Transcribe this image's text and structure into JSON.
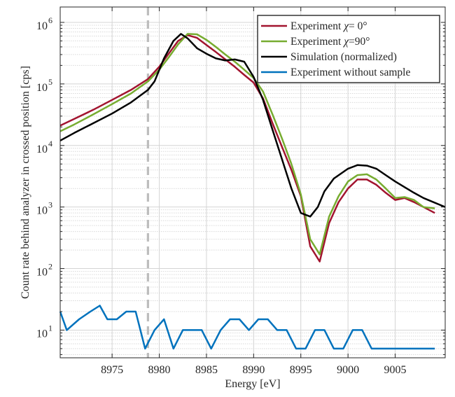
{
  "chart_data": {
    "type": "line",
    "title": "",
    "xlabel": "Energy [eV]",
    "ylabel": "Count rate behind analyzer in crossed position [cps]",
    "xlim": [
      8969.5,
      9010.3
    ],
    "ylim_log10": [
      0.55,
      6.25
    ],
    "yscale": "log",
    "grid": true,
    "x_ticks": [
      8975,
      8980,
      8985,
      8990,
      8995,
      9000,
      9005
    ],
    "x_tick_labels": [
      "8975",
      "8980",
      "8985",
      "8990",
      "8995",
      "9000",
      "9005"
    ],
    "y_tick_exponents": [
      1,
      2,
      3,
      4,
      5,
      6
    ],
    "y_tick_base": "10",
    "legend_position": "top-right",
    "vline": {
      "x": 8978.8,
      "style": "dashed",
      "color": "#bdbdbd"
    },
    "series": [
      {
        "name": "Experiment χ=  0°",
        "legend_prefix": "Experiment ",
        "legend_symbol": "χ",
        "legend_suffix": "=  0°",
        "color": "#a2142f",
        "x": [
          8969.5,
          8971,
          8973,
          8975,
          8977,
          8978.8,
          8980,
          8981,
          8982,
          8983,
          8984,
          8985,
          8986,
          8987,
          8988,
          8989,
          8990,
          8991,
          8992,
          8993,
          8994,
          8995,
          8996,
          8997,
          8998,
          8999,
          9000,
          9001,
          9002,
          9003,
          9004,
          9005,
          9006,
          9007,
          9008,
          9009.2
        ],
        "y": [
          21000,
          27000,
          38000,
          55000,
          80000,
          120000,
          190000,
          310000,
          500000,
          620000,
          560000,
          430000,
          330000,
          250000,
          190000,
          140000,
          105000,
          58000,
          23000,
          9500,
          4000,
          1500,
          230,
          130,
          550,
          1200,
          2000,
          2800,
          2800,
          2300,
          1700,
          1300,
          1400,
          1200,
          1000,
          800
        ]
      },
      {
        "name": "Experiment χ=90°",
        "legend_prefix": "Experiment ",
        "legend_symbol": "χ",
        "legend_suffix": "=90°",
        "color": "#77ac30",
        "x": [
          8969.5,
          8971,
          8973,
          8975,
          8977,
          8978.8,
          8980,
          8981,
          8982,
          8983,
          8984,
          8985,
          8986,
          8987,
          8988,
          8989,
          8990,
          8991,
          8992,
          8993,
          8994,
          8995,
          8996,
          8997,
          8998,
          8999,
          9000,
          9001,
          9002,
          9003,
          9004,
          9005,
          9006,
          9007,
          9008,
          9009.2
        ],
        "y": [
          17000,
          22000,
          32000,
          47000,
          70000,
          110000,
          170000,
          270000,
          440000,
          650000,
          640000,
          520000,
          400000,
          300000,
          230000,
          170000,
          125000,
          75000,
          32000,
          13000,
          5000,
          1600,
          300,
          170,
          700,
          1500,
          2600,
          3300,
          3400,
          2800,
          2000,
          1400,
          1450,
          1300,
          1000,
          950
        ]
      },
      {
        "name": "Simulation (normalized)",
        "color": "#000000",
        "x": [
          8969.5,
          8971,
          8973,
          8975,
          8977,
          8978.8,
          8979.5,
          8980.5,
          8981.5,
          8982.3,
          8983,
          8984,
          8985,
          8986,
          8987,
          8988,
          8989,
          8990,
          8991,
          8992,
          8993,
          8994,
          8995,
          8996,
          8996.8,
          8997.5,
          8998.5,
          9000,
          9001,
          9002,
          9003,
          9004,
          9005,
          9006,
          9007,
          9008,
          9010.3
        ],
        "y": [
          12000,
          16000,
          23000,
          33000,
          50000,
          80000,
          110000,
          260000,
          500000,
          650000,
          550000,
          380000,
          310000,
          260000,
          240000,
          250000,
          230000,
          130000,
          55000,
          18000,
          6000,
          2000,
          800,
          700,
          1000,
          1800,
          2900,
          4200,
          4800,
          4700,
          4200,
          3300,
          2600,
          2100,
          1700,
          1400,
          1000
        ]
      },
      {
        "name": "Experiment without sample",
        "color": "#0072bd",
        "x": [
          8969.5,
          8970.2,
          8971.5,
          8972.7,
          8973.7,
          8974.5,
          8975.5,
          8976.5,
          8977.5,
          8978.5,
          8979.5,
          8980.5,
          8981.5,
          8982.5,
          8983.5,
          8984.5,
          8985.5,
          8986.5,
          8987.5,
          8988.5,
          8989.5,
          8990.5,
          8991.5,
          8992.5,
          8993.5,
          8994.5,
          8995.5,
          8996.5,
          8997.5,
          8998.5,
          8999.5,
          9000.5,
          9001.5,
          9002.5,
          9003.5,
          9004.5,
          9005.5,
          9006.5,
          9007.5,
          9009.2
        ],
        "y": [
          20,
          10,
          15,
          20,
          25,
          15,
          15,
          20,
          20,
          5,
          10,
          15,
          5,
          10,
          10,
          10,
          5,
          10,
          15,
          15,
          10,
          15,
          15,
          10,
          10,
          5,
          5,
          10,
          10,
          5,
          5,
          10,
          10,
          5,
          5,
          5,
          5,
          5,
          5,
          5
        ]
      }
    ]
  }
}
